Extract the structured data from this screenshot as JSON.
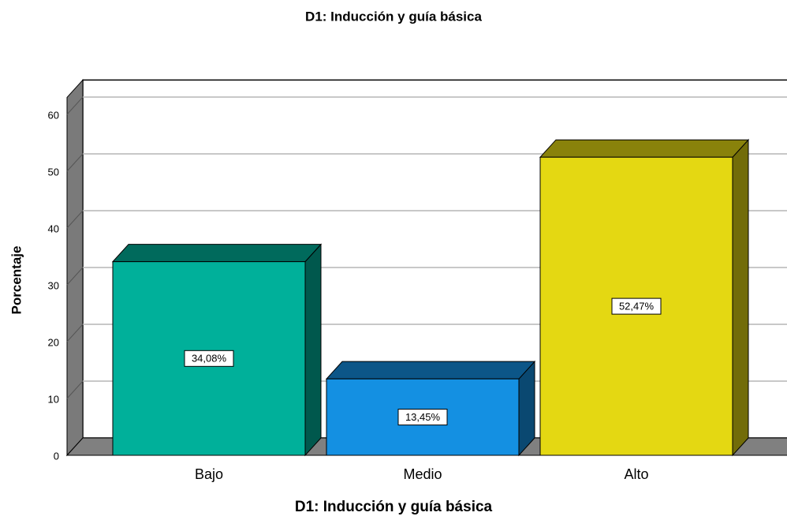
{
  "chart_data": {
    "type": "bar3d",
    "title": "D1: Inducción y guía básica",
    "x_label": "D1: Inducción y guía básica",
    "y_label": "Porcentaje",
    "categories": [
      "Bajo",
      "Medio",
      "Alto"
    ],
    "values": [
      34.08,
      13.45,
      52.47
    ],
    "value_labels": [
      "34,08%",
      "13,45%",
      "52,47%"
    ],
    "colors": [
      "#00b09a",
      "#1490e2",
      "#e4d812"
    ],
    "ylim": [
      0,
      63
    ],
    "yticks": [
      0,
      10,
      20,
      30,
      40,
      50,
      60
    ],
    "grid": true
  }
}
